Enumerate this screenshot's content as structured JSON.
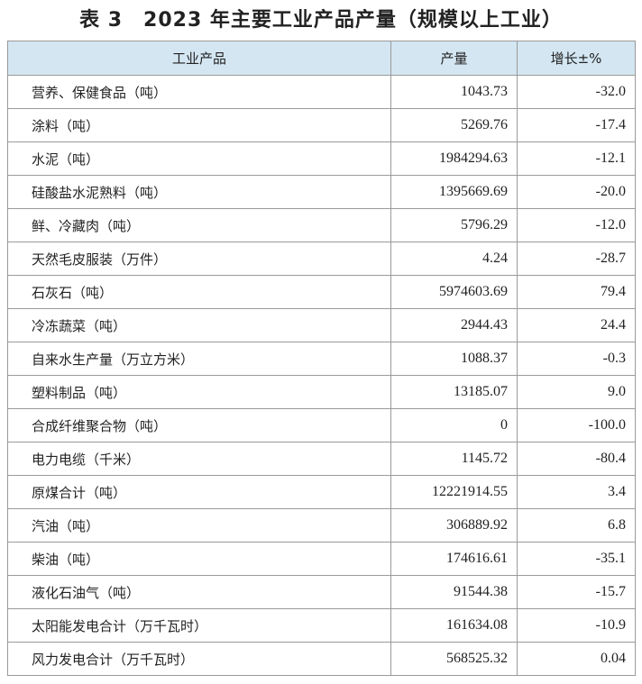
{
  "header": {
    "title": "表 3　2023 年主要工业产品产量（规模以上工业）"
  },
  "table": {
    "columns": [
      "工业产品",
      "产量",
      "增长±%"
    ],
    "rows": [
      [
        "营养、保健食品（吨）",
        "1043.73",
        "-32.0"
      ],
      [
        "涂料（吨）",
        "5269.76",
        "-17.4"
      ],
      [
        "水泥（吨）",
        "1984294.63",
        "-12.1"
      ],
      [
        "硅酸盐水泥熟料（吨）",
        "1395669.69",
        "-20.0"
      ],
      [
        "鲜、冷藏肉（吨）",
        "5796.29",
        "-12.0"
      ],
      [
        "天然毛皮服装（万件）",
        "4.24",
        "-28.7"
      ],
      [
        "石灰石（吨）",
        "5974603.69",
        "79.4"
      ],
      [
        "冷冻蔬菜（吨）",
        "2944.43",
        "24.4"
      ],
      [
        "自来水生产量（万立方米）",
        "1088.37",
        "-0.3"
      ],
      [
        "塑料制品（吨）",
        "13185.07",
        "9.0"
      ],
      [
        "合成纤维聚合物（吨）",
        "0",
        "-100.0"
      ],
      [
        "电力电缆（千米）",
        "1145.72",
        "-80.4"
      ],
      [
        "原煤合计（吨）",
        "12221914.55",
        "3.4"
      ],
      [
        "汽油（吨）",
        "306889.92",
        "6.8"
      ],
      [
        "柴油（吨）",
        "174616.61",
        "-35.1"
      ],
      [
        "液化石油气（吨）",
        "91544.38",
        "-15.7"
      ],
      [
        "太阳能发电合计（万千瓦时）",
        "161634.08",
        "-10.9"
      ],
      [
        "风力发电合计（万千瓦时）",
        "568525.32",
        "0.04"
      ]
    ]
  }
}
